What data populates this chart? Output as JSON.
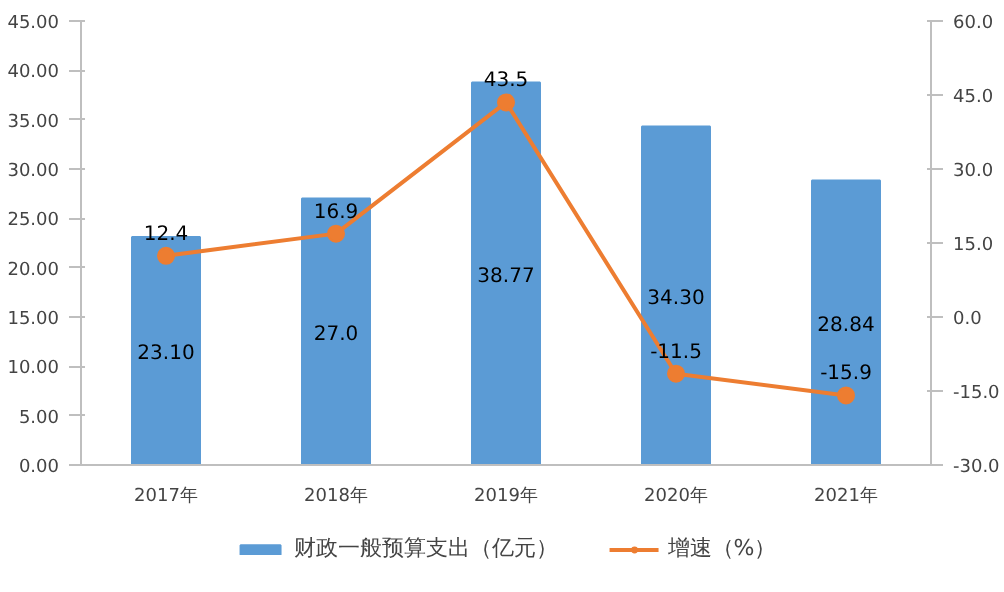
{
  "chart_data": {
    "type": "bar",
    "categories": [
      "2017年",
      "2018年",
      "2019年",
      "2020年",
      "2021年"
    ],
    "series": [
      {
        "name": "财政一般预算支出（亿元）",
        "color": "#5b9bd5",
        "values": [
          23.1,
          27.0,
          38.77,
          34.3,
          28.84
        ],
        "value_labels": [
          "23.10",
          "27.0",
          "38.77",
          "34.30",
          "28.84"
        ]
      },
      {
        "name": "增速（%）",
        "type": "line",
        "axis": "y2",
        "color": "#ed7d31",
        "marker": "circle",
        "values": [
          12.4,
          16.9,
          43.5,
          -11.5,
          -15.9
        ],
        "value_labels": [
          "12.4",
          "16.9",
          "43.5",
          "-11.5",
          "-15.9"
        ]
      }
    ],
    "ylim": [
      0,
      45
    ],
    "yticks": [
      {
        "value": 0,
        "label": "0.00"
      },
      {
        "value": 5,
        "label": "5.00"
      },
      {
        "value": 10,
        "label": "10.00"
      },
      {
        "value": 15,
        "label": "15.00"
      },
      {
        "value": 20,
        "label": "20.00"
      },
      {
        "value": 25,
        "label": "25.00"
      },
      {
        "value": 30,
        "label": "30.00"
      },
      {
        "value": 35,
        "label": "35.00"
      },
      {
        "value": 40,
        "label": "40.00"
      },
      {
        "value": 45,
        "label": "45.00"
      }
    ],
    "y2lim": [
      -30,
      60
    ],
    "y2ticks": [
      {
        "value": -30,
        "label": "-30.0"
      },
      {
        "value": -15,
        "label": "-15.0"
      },
      {
        "value": 0,
        "label": "0.0"
      },
      {
        "value": 15,
        "label": "15.0"
      },
      {
        "value": 30,
        "label": "30.0"
      },
      {
        "value": 45,
        "label": "45.0"
      },
      {
        "value": 60,
        "label": "60.0"
      }
    ],
    "grid": false,
    "legend": "bottom"
  }
}
